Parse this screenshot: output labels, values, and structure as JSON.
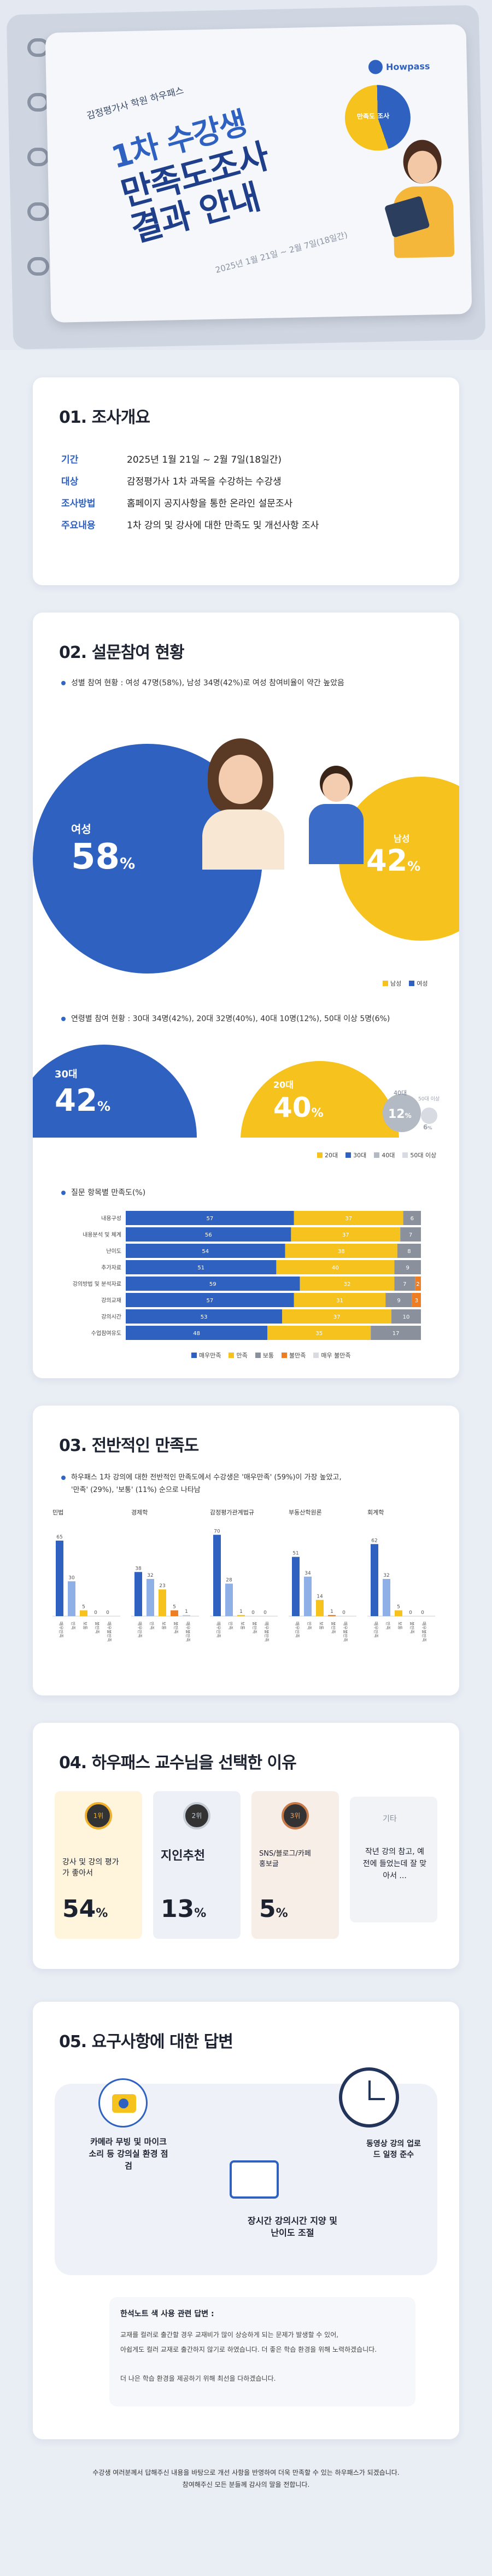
{
  "colors": {
    "blue": "#2f62c0",
    "yellow": "#f6c21d",
    "gray": "#9aa1ad",
    "orange": "#ef7d22",
    "brand": "#2f62c0"
  },
  "hero": {
    "org": "감정평가사 학원 하우패스",
    "title_l1": "1차 수강생",
    "title_l2": "만족도조사",
    "title_l3": "결과 안내",
    "date": "2025년 1월 21일 ~ 2월 7일(18일간)",
    "brand": "Howpass",
    "badge": "만족도 조사"
  },
  "s1": {
    "title": "01. 조사개요",
    "rows": [
      {
        "label": "기간",
        "value": "2025년 1월 21일 ~ 2월 7일(18일간)"
      },
      {
        "label": "대상",
        "value": "감정평가사 1차 과목을 수강하는 수강생"
      },
      {
        "label": "조사방법",
        "value": "홈페이지 공지사항을 통한 온라인 설문조사"
      },
      {
        "label": "주요내용",
        "value": "1차 강의 및 강사에 대한 만족도 및 개선사항 조사"
      }
    ]
  },
  "s2": {
    "title": "02. 설문참여 현황",
    "gender_note": "성별 참여 현황 : 여성 47명(58%), 남성 34명(42%)로 여성 참여비율이 약간 높았음",
    "female_label": "여성",
    "female_pct": "58",
    "male_label": "남성",
    "male_pct": "42",
    "pct_sign": "%",
    "gender_legend": [
      "남성",
      "여성"
    ],
    "age_note": "연령별 참여 현황 : 30대 34명(42%), 20대 32명(40%), 40대 10명(12%), 50대 이상 5명(6%)",
    "age_30_label": "30대",
    "age_30_pct": "42",
    "age_20_label": "20대",
    "age_20_pct": "40",
    "age_40_label": "40대",
    "age_40_pct": "12",
    "age_50_label": "50대 이상",
    "age_50_pct": "6",
    "age_legend": [
      "20대",
      "30대",
      "40대",
      "50대 이상"
    ],
    "item_note": "질문 항목별 만족도(%)",
    "sat_legend": [
      "매우만족",
      "만족",
      "보통",
      "불만족",
      "매우 불만족"
    ]
  },
  "chart_data": {
    "type": "bar",
    "orientation": "horizontal-stacked",
    "categories": [
      "내용구성",
      "내용분석 및 체계",
      "난이도",
      "추가자료",
      "강의방법 및 분석자료",
      "강의교재",
      "강의시간",
      "수업참여유도"
    ],
    "series": [
      {
        "name": "매우만족",
        "values": [
          57,
          56,
          54,
          51,
          59,
          57,
          53,
          48
        ]
      },
      {
        "name": "만족",
        "values": [
          37,
          37,
          38,
          40,
          32,
          31,
          37,
          35
        ]
      },
      {
        "name": "보통",
        "values": [
          6,
          7,
          8,
          9,
          7,
          9,
          10,
          17
        ]
      },
      {
        "name": "불만족",
        "values": [
          0,
          0,
          0,
          0,
          2,
          3,
          0,
          0
        ]
      },
      {
        "name": "매우 불만족",
        "values": [
          0,
          0,
          0,
          0,
          0,
          0,
          0,
          0
        ]
      }
    ],
    "xlim": [
      0,
      100
    ]
  },
  "s3": {
    "title": "03. 전반적인 만족도",
    "note_l1": "하우패스 1차 강의에 대한 전반적인 만족도에서 수강생은 '매우만족' (59%)이 가장 높았고,",
    "note_l2": "'만족' (29%), '보통' (11%) 순으로 나타남",
    "panels": [
      {
        "name": "민법",
        "values": [
          65,
          30,
          5,
          0,
          0
        ]
      },
      {
        "name": "경제학",
        "values": [
          38,
          32,
          23,
          5,
          1
        ]
      },
      {
        "name": "감정평가관계법규",
        "values": [
          70,
          28,
          1,
          0,
          0
        ]
      },
      {
        "name": "부동산학원론",
        "values": [
          51,
          34,
          14,
          1,
          0
        ]
      },
      {
        "name": "회계학",
        "values": [
          62,
          32,
          5,
          0,
          0
        ]
      }
    ],
    "bar_labels": [
      "매우만족",
      "만족",
      "보통",
      "불만족",
      "매우불만족"
    ]
  },
  "s4": {
    "title": "04. 하우패스 교수님을 선택한 이유",
    "cards": [
      {
        "rank": "1위",
        "text": "강사 및 강의 평가가 좋아서",
        "pct": "54",
        "unit": "%"
      },
      {
        "rank": "2위",
        "text": "지인추천",
        "pct": "13",
        "unit": "%"
      },
      {
        "rank": "3위",
        "text": "SNS/블로그/카페 홍보글",
        "pct": "5",
        "unit": "%"
      },
      {
        "rank": "기타",
        "text": "작년 강의 참고, 예전에 들었는데 잘 맞아서 ..."
      }
    ]
  },
  "s5": {
    "title": "05. 요구사항에 대한 답변",
    "bubble1": "카메라 무빙 및 마이크 소리 등 강의실 환경 점검",
    "bubble2": "장시간 강의시간 지양 및 난이도 조절",
    "bubble3": "동영상 강의 업로드 일정 준수",
    "feedback_title": "한석노트 색 사용 관련 답변 :",
    "feedback_l1": "교재를 컬러로 출간할 경우 교재비가 많이 상승하게 되는 문제가 발생할 수 있어,",
    "feedback_l2": "아쉽게도 컬러 교재로 출간하지 않기로 하였습니다. 더 좋은 학습 환경을 위해 노력하겠습니다.",
    "feedback_l3": "더 나은 학습 환경을 제공하기 위해 최선을 다하겠습니다."
  },
  "footer": {
    "l1": "수강생 여러분께서 답해주신 내용을 바탕으로 개선 사항을 반영하여 더욱 만족할 수 있는 하우패스가 되겠습니다.",
    "l2": "참여해주신 모든 분들께 감사의 말을 전합니다."
  }
}
